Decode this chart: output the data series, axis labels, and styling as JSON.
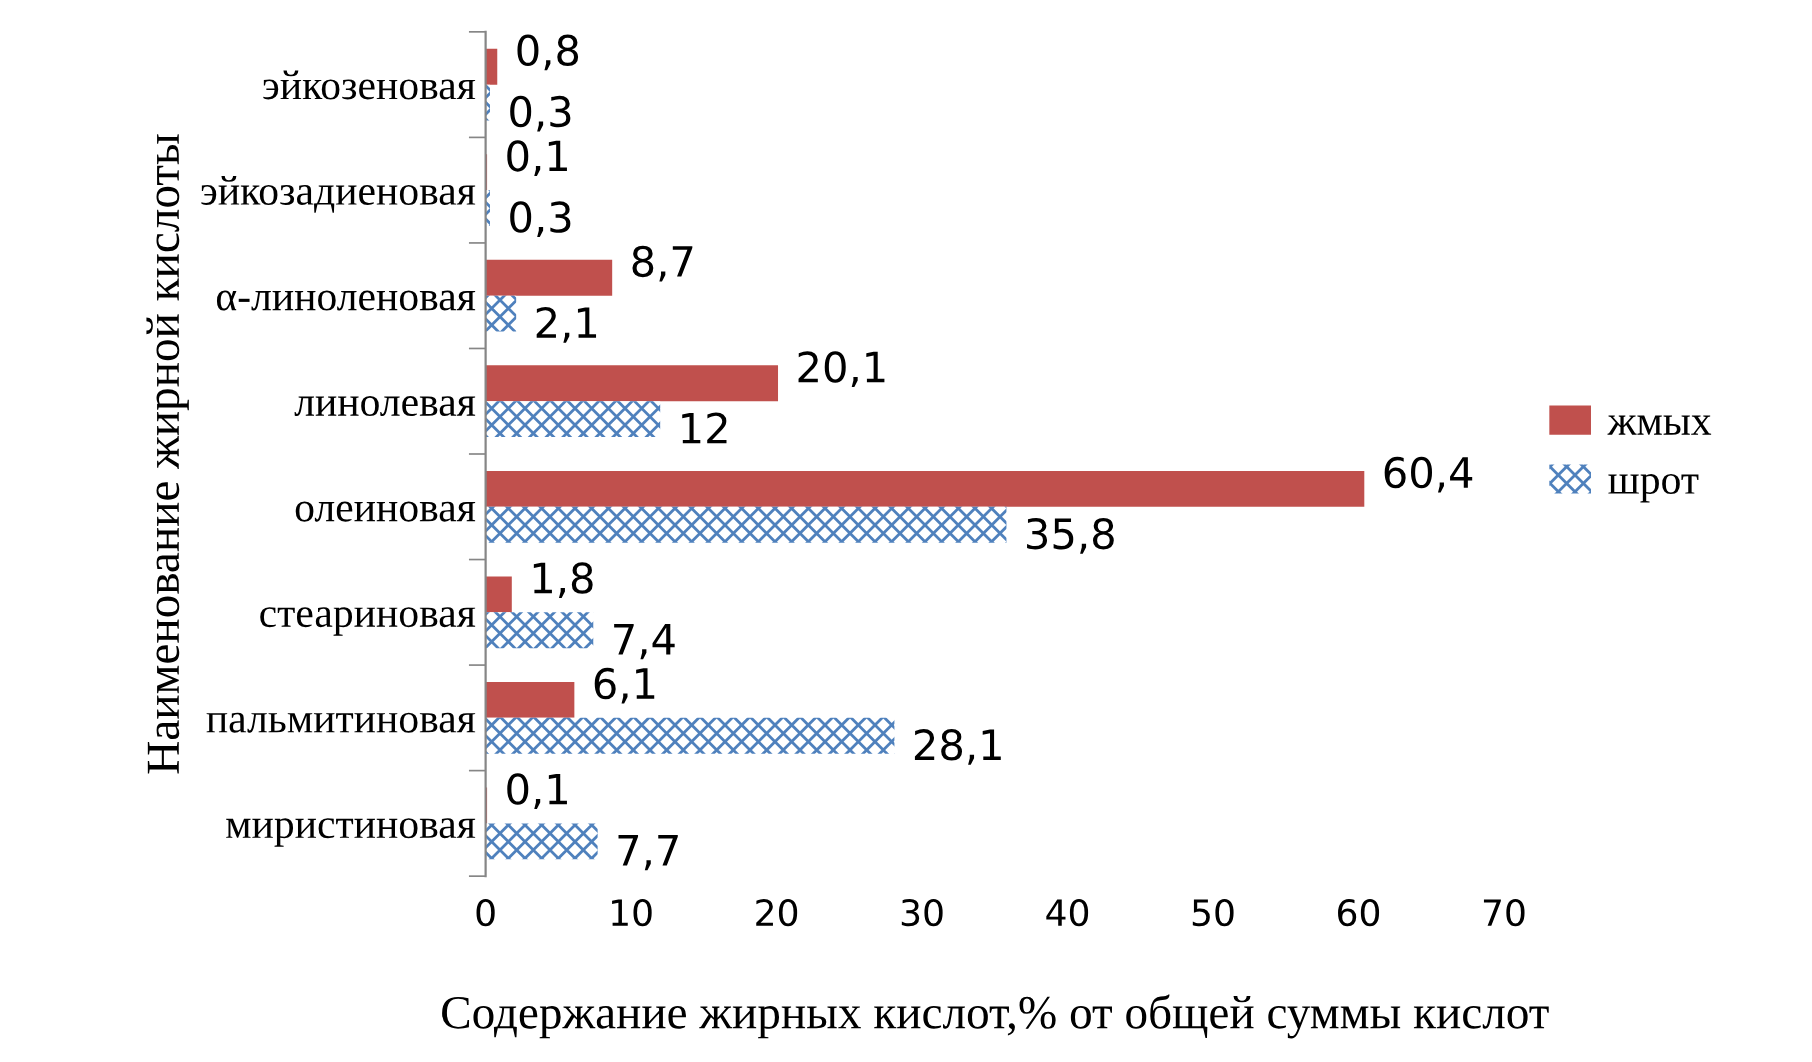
{
  "chart_data": {
    "type": "bar",
    "orientation": "horizontal",
    "xlabel": "Содержание жирных кислот,% от общей суммы кислот",
    "ylabel": "Наименование жирной кислоты",
    "categories": [
      "эйкозеновая",
      "эйкозадиеновая",
      "α-линоленовая",
      "линолевая",
      "олеиновая",
      "стеариновая",
      "пальмитиновая",
      "миристиновая"
    ],
    "series": [
      {
        "name": "жмых",
        "color": "#c0504d",
        "values": [
          0.8,
          0.1,
          8.7,
          20.1,
          60.4,
          1.8,
          6.1,
          0.1
        ],
        "value_labels": [
          "0,8",
          "0,1",
          "8,7",
          "20,1",
          "60,4",
          "1,8",
          "6,1",
          "0,1"
        ]
      },
      {
        "name": "шрот",
        "color": "#4f81bd",
        "values": [
          0.3,
          0.3,
          2.1,
          12,
          35.8,
          7.4,
          28.1,
          7.7
        ],
        "value_labels": [
          "0,3",
          "0,3",
          "2,1",
          "12",
          "35,8",
          "7,4",
          "28,1",
          "7,7"
        ]
      }
    ],
    "xlim": [
      0,
      70
    ],
    "xticks": [
      0,
      10,
      20,
      30,
      40,
      50,
      60,
      70
    ],
    "legend": "right",
    "grid": false
  }
}
